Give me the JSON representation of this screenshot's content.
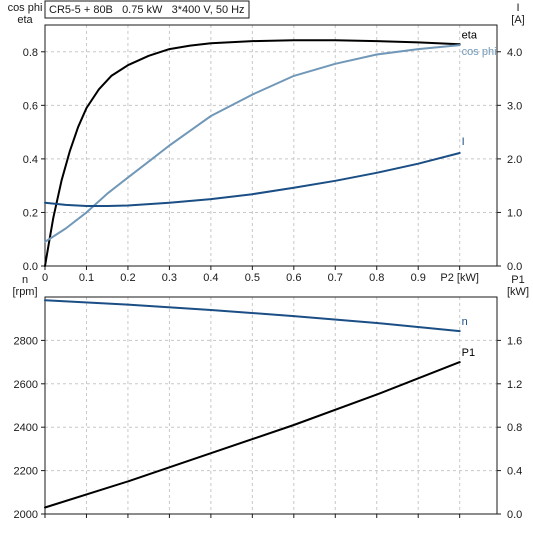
{
  "header": "CR5-5 + 80B   0.75 kW   3*400 V, 50 Hz",
  "chart_data": [
    {
      "type": "line",
      "xlabel": "P2 [kW]",
      "xlim": [
        0,
        1.09
      ],
      "xticks": [
        "0",
        "0.1",
        "0.2",
        "0.3",
        "0.4",
        "0.5",
        "0.6",
        "0.7",
        "0.8",
        "0.9"
      ],
      "left_axis": {
        "label_line1": "cos phi",
        "label_line2": "eta",
        "ylim": [
          0,
          0.9
        ],
        "ticks": [
          "0.0",
          "0.2",
          "0.4",
          "0.6",
          "0.8"
        ]
      },
      "right_axis": {
        "label_line1": "I",
        "label_line2": "[A]",
        "ylim": [
          0,
          4.5
        ],
        "ticks": [
          "0.0",
          "1.0",
          "2.0",
          "3.0",
          "4.0"
        ]
      },
      "grid": true,
      "series": [
        {
          "name": "eta",
          "axis": "left",
          "color": "#000000",
          "x": [
            0,
            0.01,
            0.02,
            0.04,
            0.06,
            0.08,
            0.1,
            0.13,
            0.16,
            0.2,
            0.25,
            0.3,
            0.35,
            0.4,
            0.5,
            0.6,
            0.7,
            0.8,
            0.9,
            1.0
          ],
          "y": [
            0,
            0.09,
            0.18,
            0.32,
            0.43,
            0.52,
            0.59,
            0.66,
            0.71,
            0.75,
            0.785,
            0.81,
            0.823,
            0.832,
            0.84,
            0.843,
            0.843,
            0.84,
            0.835,
            0.828
          ]
        },
        {
          "name": "cos phi",
          "axis": "left",
          "color": "#7198b8",
          "x": [
            0,
            0.05,
            0.1,
            0.15,
            0.2,
            0.25,
            0.3,
            0.4,
            0.5,
            0.6,
            0.7,
            0.8,
            0.9,
            1.0
          ],
          "y": [
            0.09,
            0.14,
            0.2,
            0.27,
            0.33,
            0.39,
            0.45,
            0.56,
            0.64,
            0.71,
            0.755,
            0.79,
            0.81,
            0.825
          ]
        },
        {
          "name": "I",
          "axis": "right",
          "color": "#1a4e85",
          "x": [
            0,
            0.05,
            0.1,
            0.15,
            0.2,
            0.3,
            0.4,
            0.5,
            0.6,
            0.7,
            0.8,
            0.9,
            1.0
          ],
          "y": [
            1.18,
            1.14,
            1.12,
            1.12,
            1.13,
            1.18,
            1.25,
            1.34,
            1.46,
            1.59,
            1.74,
            1.91,
            2.11
          ]
        }
      ]
    },
    {
      "type": "line",
      "xlim": [
        0,
        1.09
      ],
      "left_axis": {
        "label_line1": "n",
        "label_line2": "[rpm]",
        "ylim": [
          2000,
          3000
        ],
        "ticks": [
          "2000",
          "2200",
          "2400",
          "2600",
          "2800"
        ]
      },
      "right_axis": {
        "label_line1": "P1",
        "label_line2": "[kW]",
        "ylim": [
          0,
          2.0
        ],
        "ticks": [
          "0.0",
          "0.4",
          "0.8",
          "1.2",
          "1.6"
        ]
      },
      "grid": true,
      "series": [
        {
          "name": "n",
          "axis": "left",
          "color": "#1a4e85",
          "x": [
            0,
            0.2,
            0.4,
            0.6,
            0.8,
            1.0
          ],
          "y": [
            2985,
            2965,
            2940,
            2912,
            2880,
            2843
          ]
        },
        {
          "name": "P1",
          "axis": "right",
          "color": "#000000",
          "x": [
            0,
            0.2,
            0.4,
            0.6,
            0.8,
            1.0
          ],
          "y": [
            0.06,
            0.3,
            0.56,
            0.82,
            1.1,
            1.4
          ]
        }
      ]
    }
  ]
}
